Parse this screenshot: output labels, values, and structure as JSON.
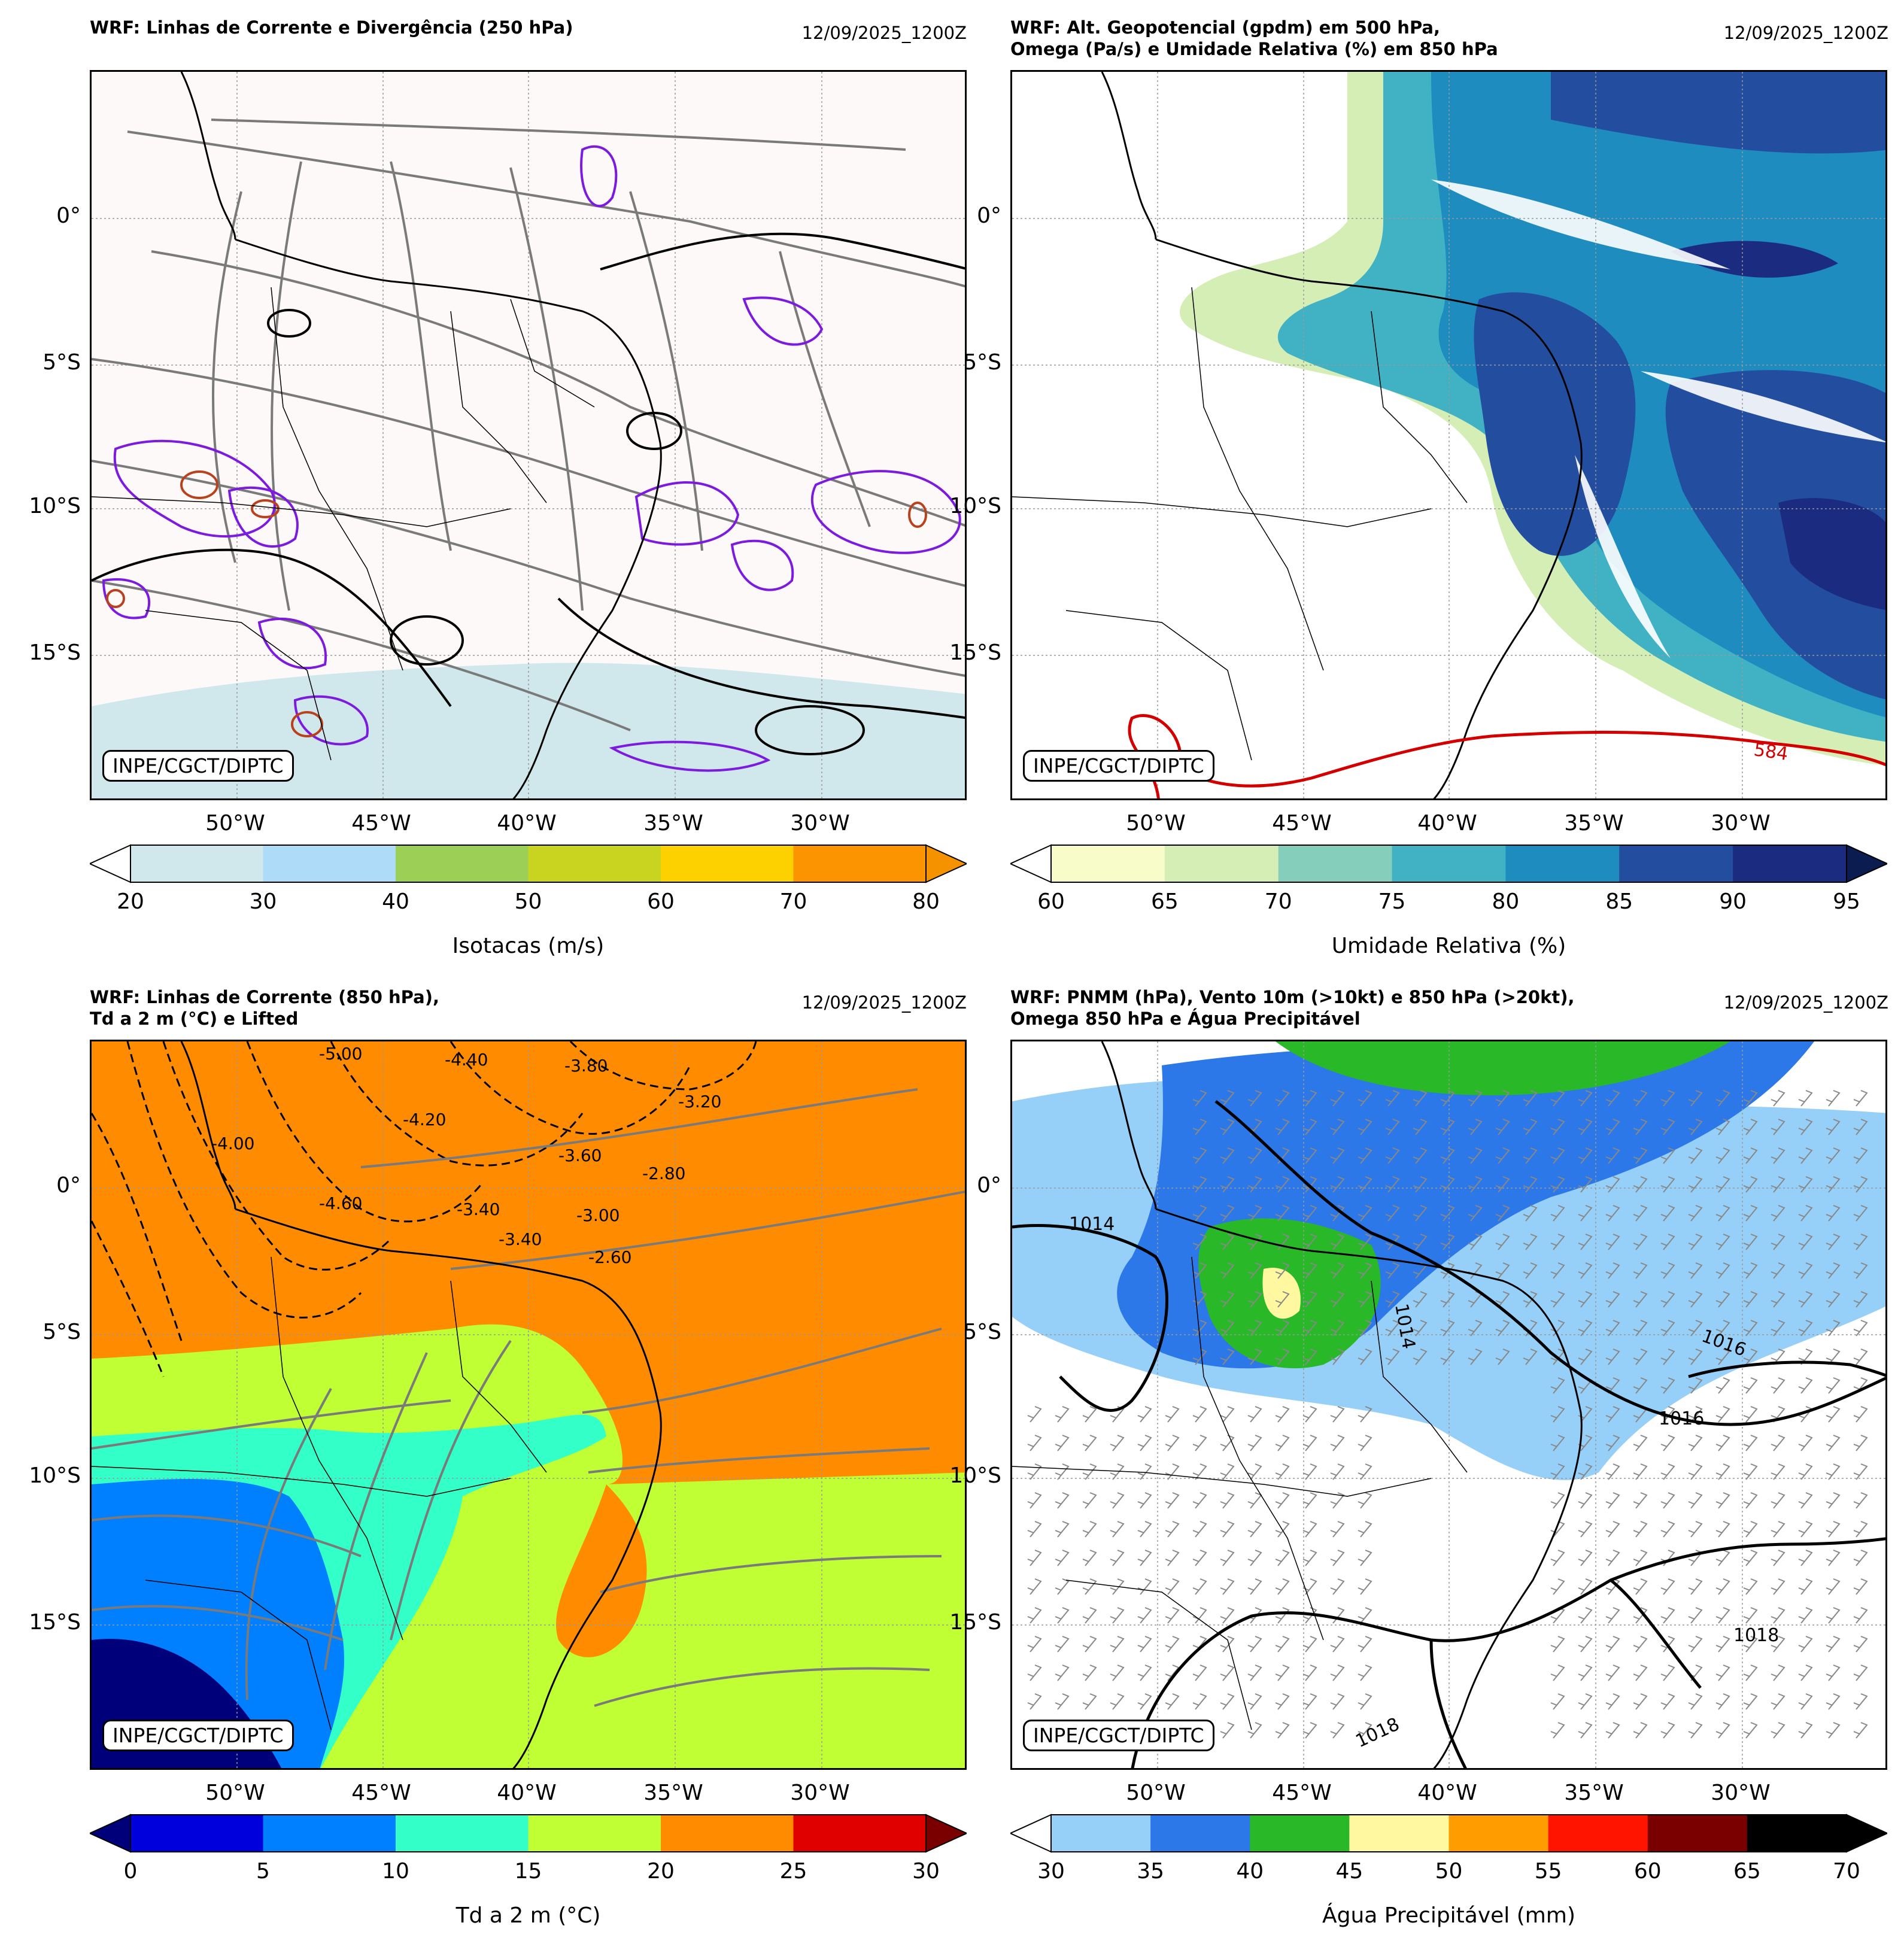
{
  "credit": "INPE/CGCT/DIPTC",
  "lat_ticks": [
    "0°",
    "5°S",
    "10°S",
    "15°S"
  ],
  "lon_ticks": [
    "50°W",
    "45°W",
    "40°W",
    "35°W",
    "30°W"
  ],
  "panels": [
    {
      "id": "p1",
      "title": "WRF: Linhas de Corrente e Divergência (250 hPa)",
      "date": "12/09/2025_1200Z",
      "colorbar": {
        "label": "Isotacas (m/s)",
        "ticks": [
          "20",
          "30",
          "40",
          "50",
          "60",
          "70",
          "80"
        ],
        "colors": [
          "#d0e8ec",
          "#aedcf8",
          "#9ccf55",
          "#c8d420",
          "#fdd000",
          "#fb9400"
        ],
        "under": "#ffffff",
        "over": "#f59200"
      }
    },
    {
      "id": "p2",
      "title": "WRF: Alt. Geopotencial (gpdm) em 500 hPa,\nOmega (Pa/s) e Umidade Relativa (%) em 850 hPa",
      "date": "12/09/2025_1200Z",
      "contour_label": "584",
      "colorbar": {
        "label": "Umidade Relativa (%)",
        "ticks": [
          "60",
          "65",
          "70",
          "75",
          "80",
          "85",
          "90",
          "95"
        ],
        "colors": [
          "#f8fcc8",
          "#d4eeb6",
          "#86cebc",
          "#41b2c4",
          "#1f8cc0",
          "#234ea0",
          "#1a2b80"
        ],
        "under": "#ffffff",
        "over": "#0b1d50"
      }
    },
    {
      "id": "p3",
      "title": "WRF: Linhas de Corrente (850 hPa),\nTd a 2 m (°C) e Lifted",
      "date": "12/09/2025_1200Z",
      "contour_labels": [
        "-5.00",
        "-4.40",
        "-3.80",
        "-4.20",
        "-3.60",
        "-3.40",
        "-3.00",
        "-2.60",
        "-2.80",
        "-3.20",
        "-4.60",
        "-4.00",
        "-3.40"
      ],
      "colorbar": {
        "label": "Td a 2 m (°C)",
        "ticks": [
          "0",
          "5",
          "10",
          "15",
          "20",
          "25",
          "30"
        ],
        "colors": [
          "#0000dd",
          "#0080ff",
          "#33ffc8",
          "#bfff33",
          "#ff8c00",
          "#e00000"
        ],
        "under": "#00007a",
        "over": "#7a0000"
      }
    },
    {
      "id": "p4",
      "title": "WRF: PNMM (hPa), Vento 10m (>10kt) e 850 hPa (>20kt),\nOmega 850 hPa e Água Precipitável",
      "date": "12/09/2025_1200Z",
      "contour_labels": [
        "1014",
        "1014",
        "1016",
        "1016",
        "1018",
        "1018"
      ],
      "colorbar": {
        "label": "Água Precipitável (mm)",
        "ticks": [
          "30",
          "35",
          "40",
          "45",
          "50",
          "55",
          "60",
          "65",
          "70"
        ],
        "colors": [
          "#96d0f8",
          "#2d78e8",
          "#28b828",
          "#fff8a0",
          "#ff9c00",
          "#ff1400",
          "#7a0000",
          "#000000"
        ],
        "under": "#ffffff",
        "over": "#000000"
      }
    }
  ]
}
